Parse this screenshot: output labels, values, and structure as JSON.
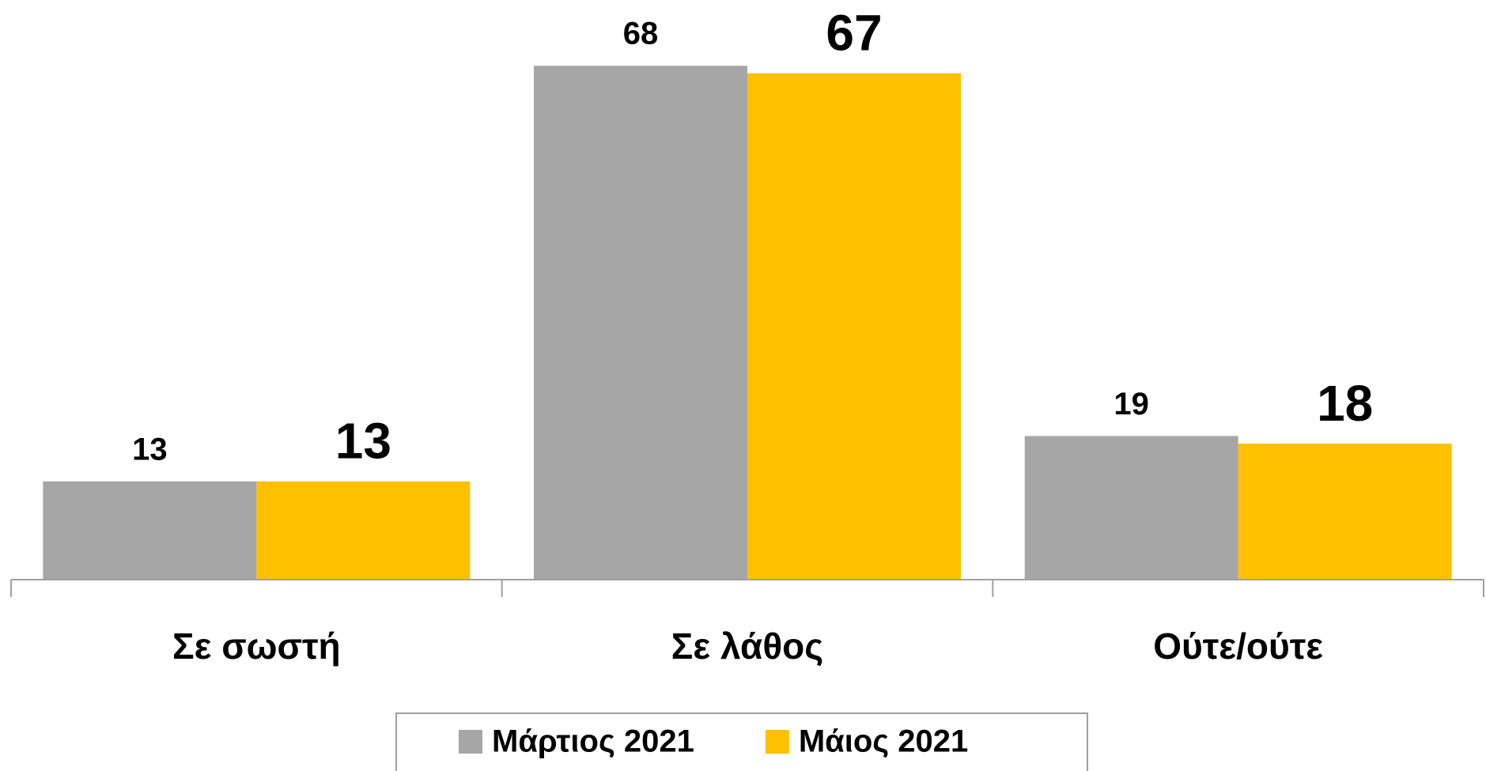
{
  "chart_data": {
    "type": "bar",
    "categories": [
      "Σε σωστή",
      "Σε λάθος",
      "Ούτε/ούτε"
    ],
    "series": [
      {
        "name": "Μάρτιος 2021",
        "color": "#a6a6a6",
        "values": [
          13,
          68,
          19
        ]
      },
      {
        "name": "Μάιος 2021",
        "color": "#ffc000",
        "values": [
          13,
          67,
          18
        ]
      }
    ],
    "ylim": [
      0,
      70
    ],
    "grid": false,
    "legend": "bottom"
  }
}
